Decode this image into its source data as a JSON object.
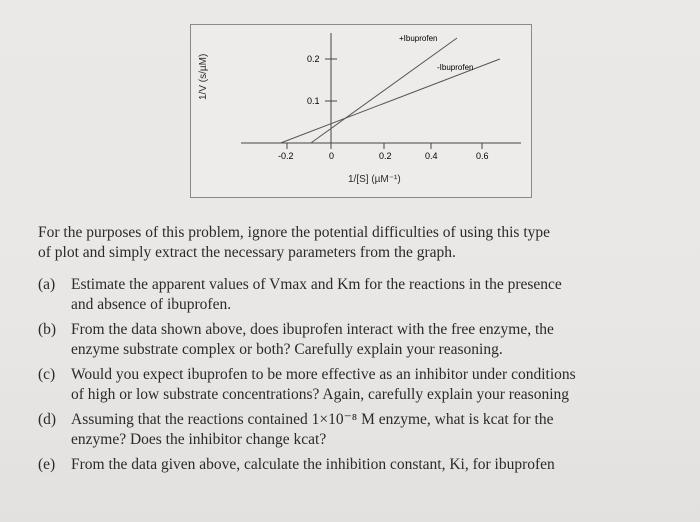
{
  "figure": {
    "ylabel": "1/V (s/µM)",
    "xlabel": "1/[S] (µM⁻¹)",
    "x_ticks": [
      "-0.2",
      "0",
      "0.2",
      "0.4",
      "0.6"
    ],
    "y_ticks": [
      "0.1",
      "0.2"
    ],
    "legend": {
      "plus_label": "+Ibuprofen",
      "minus_label": "-Ibuprofen"
    }
  },
  "chart_data": {
    "type": "line",
    "xlabel": "1/[S] (µM⁻¹)",
    "ylabel": "1/V (s/µM)",
    "xlim": [
      -0.35,
      0.72
    ],
    "ylim": [
      -0.02,
      0.26
    ],
    "series": [
      {
        "name": "+Ibuprofen",
        "x": [
          -0.08,
          0.5
        ],
        "y": [
          0.0,
          0.25
        ]
      },
      {
        "name": "-Ibuprofen",
        "x": [
          -0.2,
          0.67
        ],
        "y": [
          0.0,
          0.2
        ]
      }
    ]
  },
  "text": {
    "intro_1": "For the purposes of this problem, ignore the potential difficulties of using this type",
    "intro_2": "of plot and simply extract the necessary parameters from the graph.",
    "questions": [
      {
        "label": "(a)",
        "line1": "Estimate the apparent values of Vmax and Km for the reactions in the presence",
        "line2": "and absence of ibuprofen."
      },
      {
        "label": "(b)",
        "line1": "From the data shown above, does ibuprofen interact with the free enzyme, the",
        "line2": "enzyme substrate complex or both? Carefully explain your reasoning."
      },
      {
        "label": "(c)",
        "line1": "Would you expect ibuprofen to be more effective as an inhibitor under conditions",
        "line2": "of high or low substrate concentrations? Again, carefully explain your reasoning"
      },
      {
        "label": "(d)",
        "line1": "Assuming that the reactions contained 1×10⁻⁸ M enzyme, what is kcat for the",
        "line2": "enzyme? Does the inhibitor change kcat?"
      },
      {
        "label": "(e)",
        "line1": "From the data given above, calculate the inhibition constant, Ki, for ibuprofen",
        "line2": ""
      }
    ]
  }
}
